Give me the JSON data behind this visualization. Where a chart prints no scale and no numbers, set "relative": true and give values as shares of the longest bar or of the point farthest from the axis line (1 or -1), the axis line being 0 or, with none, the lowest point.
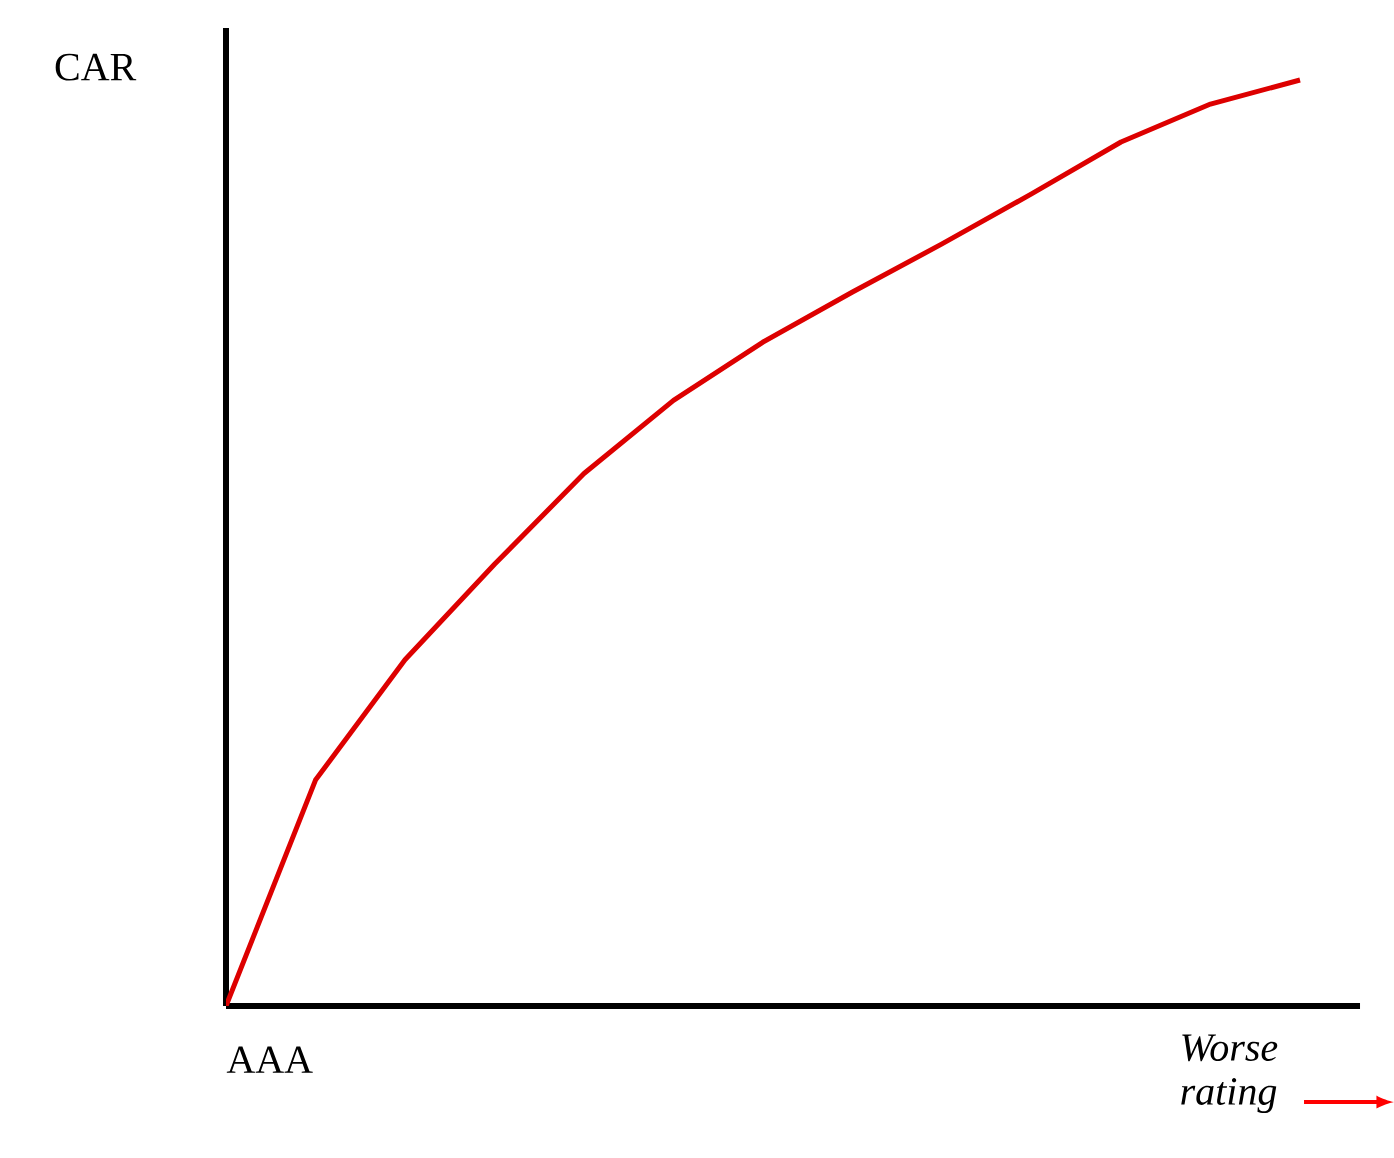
{
  "chart_data": {
    "type": "line",
    "ylabel": "CAR",
    "xlabel": "Worse rating",
    "relative": true,
    "annotations": [
      "AAA"
    ],
    "categories": [
      null,
      null,
      null,
      null,
      null,
      null,
      null,
      null,
      null,
      null,
      null,
      null,
      null
    ],
    "series": [
      {
        "color": "#dd0000",
        "values": [
          0,
          0.244,
          0.374,
          0.477,
          0.575,
          0.654,
          0.717,
          0.771,
          0.823,
          0.877,
          0.933,
          0.974,
          1
        ]
      }
    ]
  }
}
